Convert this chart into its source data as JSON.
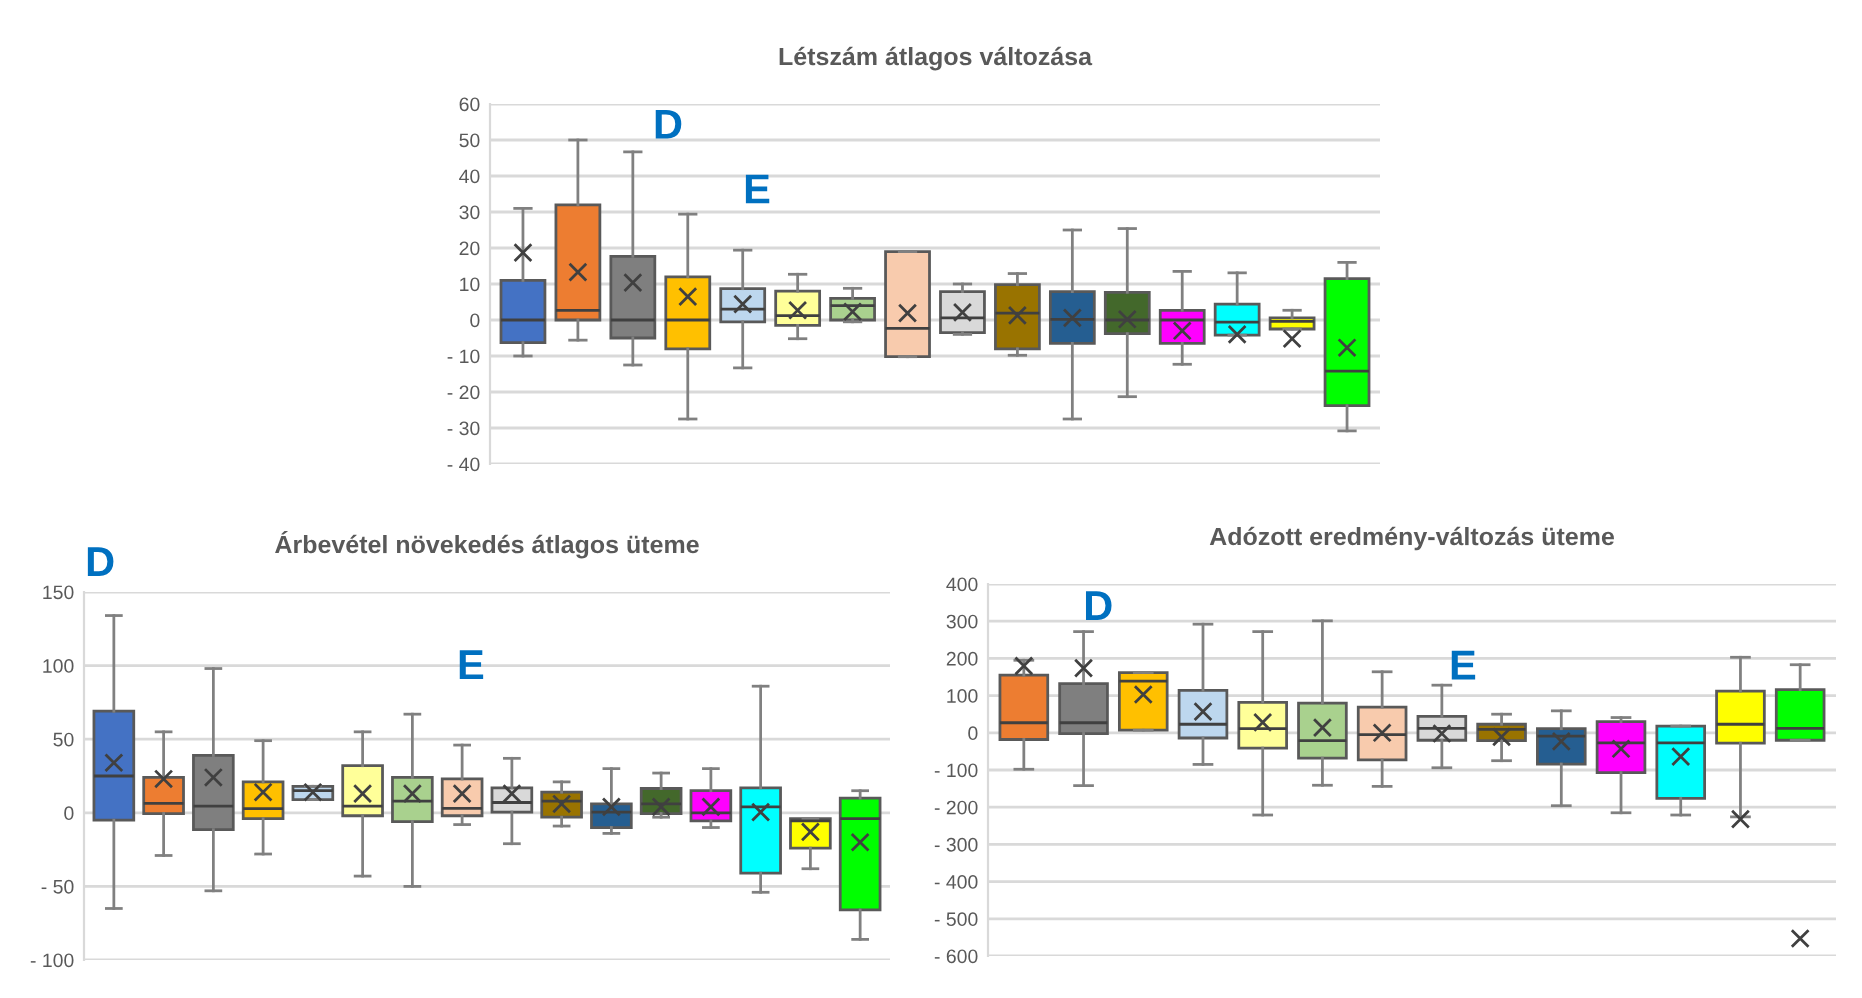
{
  "chart_data": [
    {
      "type": "box",
      "title": "Létszám átlagos változása",
      "annotations": [
        "D",
        "E"
      ],
      "categories": [
        null,
        null,
        null,
        null,
        null,
        null,
        null,
        null,
        null,
        null,
        null,
        null,
        null,
        null,
        null,
        null
      ],
      "colors": [
        "#4472c4",
        "#ed7d31",
        "#7f7f7f",
        "#ffc000",
        "#bdd7ee",
        "#ffff99",
        "#a9d18e",
        "#f8cbad",
        "#d9d9d9",
        "#997300",
        "#255e91",
        "#43682b",
        "#ff00ff",
        "#00ffff",
        "#ffff00",
        "#00ff00"
      ],
      "boxes": [
        {
          "low": -10,
          "q1": -6.3,
          "median": 0,
          "q3": 11,
          "high": 31,
          "mean": 18.7
        },
        {
          "low": -5.6,
          "q1": 0,
          "median": 2.7,
          "q3": 32,
          "high": 50,
          "mean": 13.3
        },
        {
          "low": -12.5,
          "q1": -5,
          "median": 0,
          "q3": 17.7,
          "high": 46.7,
          "mean": 10.4
        },
        {
          "low": -27.5,
          "q1": -8,
          "median": 0,
          "q3": 12,
          "high": 29.4,
          "mean": 6.5
        },
        {
          "low": -13.3,
          "q1": -0.5,
          "median": 3,
          "q3": 8.7,
          "high": 19.4,
          "mean": 4.4
        },
        {
          "low": -5.2,
          "q1": -1.5,
          "median": 1.2,
          "q3": 8,
          "high": 12.7,
          "mean": 2.7
        },
        {
          "low": -0.5,
          "q1": 0,
          "median": 4,
          "q3": 6,
          "high": 8.8,
          "mean": 2.3
        },
        {
          "low": -10.2,
          "q1": -10.2,
          "median": -2.3,
          "q3": 19,
          "high": 19,
          "mean": 1.9
        },
        {
          "low": -4,
          "q1": -3.5,
          "median": 0.6,
          "q3": 7.9,
          "high": 10,
          "mean": 2.1
        },
        {
          "low": -9.8,
          "q1": -8,
          "median": 1.9,
          "q3": 9.8,
          "high": 12.9,
          "mean": 1.3
        },
        {
          "low": -27.5,
          "q1": -6.5,
          "median": 0.2,
          "q3": 7.9,
          "high": 25,
          "mean": 0.6
        },
        {
          "low": -21.3,
          "q1": -3.8,
          "median": 0,
          "q3": 7.7,
          "high": 25.4,
          "mean": 0.2
        },
        {
          "low": -12.3,
          "q1": -6.5,
          "median": 0,
          "q3": 2.7,
          "high": 13.5,
          "mean": -3
        },
        {
          "low": -4.2,
          "q1": -4.2,
          "median": -0.6,
          "q3": 4.4,
          "high": 13.1,
          "mean": -4
        },
        {
          "low": -2.5,
          "q1": -2.5,
          "median": -0.4,
          "q3": 0.6,
          "high": 2.7,
          "mean": -5.2
        },
        {
          "low": -30.8,
          "q1": -23.8,
          "median": -14.2,
          "q3": 11.5,
          "high": 16,
          "mean": -7.7
        }
      ],
      "ylim": [
        -40,
        60
      ],
      "yticks": [
        {
          "value": -40,
          "label": "- 40"
        },
        {
          "value": -30,
          "label": "- 30"
        },
        {
          "value": -20,
          "label": "- 20"
        },
        {
          "value": -10,
          "label": "- 10"
        },
        0,
        10,
        20,
        30,
        40,
        50,
        60
      ],
      "tick_labels": "y",
      "grid": "y"
    },
    {
      "type": "box",
      "title": "Árbevétel növekedés átlagos üteme",
      "annotations": [
        "D",
        "E"
      ],
      "categories": [
        null,
        null,
        null,
        null,
        null,
        null,
        null,
        null,
        null,
        null,
        null,
        null,
        null,
        null,
        null,
        null
      ],
      "colors": [
        "#4472c4",
        "#ed7d31",
        "#7f7f7f",
        "#ffc000",
        "#bdd7ee",
        "#ffff99",
        "#a9d18e",
        "#f8cbad",
        "#d9d9d9",
        "#997300",
        "#255e91",
        "#43682b",
        "#ff00ff",
        "#00ffff",
        "#ffff00",
        "#00ff00"
      ],
      "boxes": [
        {
          "low": -65,
          "q1": -5,
          "median": 25,
          "q3": 69,
          "high": 134,
          "mean": 34
        },
        {
          "low": -29,
          "q1": -0.5,
          "median": 6.4,
          "q3": 24,
          "high": 55,
          "mean": 23
        },
        {
          "low": -53,
          "q1": -11.5,
          "median": 4.6,
          "q3": 39,
          "high": 98,
          "mean": 24
        },
        {
          "low": -28,
          "q1": -4,
          "median": 2.8,
          "q3": 21,
          "high": 49,
          "mean": 14
        },
        {
          "low": 9,
          "q1": 9,
          "median": 15,
          "q3": 18,
          "high": 18,
          "mean": 14
        },
        {
          "low": -43,
          "q1": -2,
          "median": 4.6,
          "q3": 32,
          "high": 55,
          "mean": 13
        },
        {
          "low": -50,
          "q1": -6,
          "median": 8,
          "q3": 24,
          "high": 67,
          "mean": 13
        },
        {
          "low": -8,
          "q1": -2,
          "median": 3,
          "q3": 23,
          "high": 46,
          "mean": 13
        },
        {
          "low": -21,
          "q1": 0.5,
          "median": 7,
          "q3": 17,
          "high": 37,
          "mean": 13
        },
        {
          "low": -9,
          "q1": -3,
          "median": 8,
          "q3": 14,
          "high": 21,
          "mean": 6
        },
        {
          "low": -14,
          "q1": -10,
          "median": 0.5,
          "q3": 6,
          "high": 30,
          "mean": 4
        },
        {
          "low": -3,
          "q1": -0.5,
          "median": 6,
          "q3": 16.5,
          "high": 27,
          "mean": 4
        },
        {
          "low": -10,
          "q1": -5.5,
          "median": 0,
          "q3": 15,
          "high": 30,
          "mean": 4
        },
        {
          "low": -54,
          "q1": -41,
          "median": 4,
          "q3": 17,
          "high": 86,
          "mean": 0.5
        },
        {
          "low": -38,
          "q1": -24,
          "median": -5.5,
          "q3": -4,
          "high": -4,
          "mean": -13
        },
        {
          "low": -86,
          "q1": -66,
          "median": -4,
          "q3": 10,
          "high": 15,
          "mean": -20
        }
      ],
      "ylim": [
        -100,
        150
      ],
      "yticks": [
        {
          "value": -100,
          "label": "- 100"
        },
        {
          "value": -50,
          "label": "- 50"
        },
        0,
        50,
        100,
        150
      ],
      "tick_labels": "y",
      "grid": "y"
    },
    {
      "type": "box",
      "title": "Adózott eredmény-változás üteme",
      "annotations": [
        "D",
        "E"
      ],
      "categories": [
        null,
        null,
        null,
        null,
        null,
        null,
        null,
        null,
        null,
        null,
        null,
        null,
        null,
        null
      ],
      "colors": [
        "#ed7d31",
        "#7f7f7f",
        "#ffc000",
        "#bdd7ee",
        "#ffff99",
        "#a9d18e",
        "#f8cbad",
        "#d9d9d9",
        "#997300",
        "#255e91",
        "#ff00ff",
        "#00ffff",
        "#ffff00",
        "#00ff00"
      ],
      "boxes": [
        {
          "low": -98,
          "q1": -18,
          "median": 27,
          "q3": 155,
          "high": 195,
          "mean": 180
        },
        {
          "low": -142,
          "q1": -2,
          "median": 27,
          "q3": 132,
          "high": 272,
          "mean": 174
        },
        {
          "low": 7,
          "q1": 7,
          "median": 139,
          "q3": 162,
          "high": 162,
          "mean": 103
        },
        {
          "low": -85,
          "q1": -14,
          "median": 23,
          "q3": 114,
          "high": 292,
          "mean": 57
        },
        {
          "low": -221,
          "q1": -41,
          "median": 11,
          "q3": 82,
          "high": 272,
          "mean": 28
        },
        {
          "low": -141,
          "q1": -68,
          "median": -21,
          "q3": 80,
          "high": 301,
          "mean": 14
        },
        {
          "low": -144,
          "q1": -73,
          "median": -5,
          "q3": 69,
          "high": 164,
          "mean": 0
        },
        {
          "low": -94,
          "q1": -20,
          "median": 12,
          "q3": 44,
          "high": 128,
          "mean": -2
        },
        {
          "low": -75,
          "q1": -21,
          "median": 9,
          "q3": 23,
          "high": 50,
          "mean": -11
        },
        {
          "low": -196,
          "q1": -84,
          "median": -9,
          "q3": 11,
          "high": 59,
          "mean": -23
        },
        {
          "low": -215,
          "q1": -107,
          "median": -27,
          "q3": 30,
          "high": 41,
          "mean": -43
        },
        {
          "low": -221,
          "q1": -176,
          "median": -27,
          "q3": 18,
          "high": 18,
          "mean": -64
        },
        {
          "low": -226,
          "q1": -28,
          "median": 23,
          "q3": 112,
          "high": 203,
          "mean": -232
        },
        {
          "low": -20,
          "q1": -20,
          "median": 12,
          "q3": 116,
          "high": 183,
          "mean": -553
        }
      ],
      "ylim": [
        -600,
        400
      ],
      "yticks": [
        {
          "value": -600,
          "label": "- 600"
        },
        {
          "value": -500,
          "label": "- 500"
        },
        {
          "value": -400,
          "label": "- 400"
        },
        {
          "value": -300,
          "label": "- 300"
        },
        {
          "value": -200,
          "label": "- 200"
        },
        {
          "value": -100,
          "label": "- 100"
        },
        0,
        100,
        200,
        300,
        400
      ],
      "tick_labels": "y",
      "grid": "y"
    }
  ]
}
